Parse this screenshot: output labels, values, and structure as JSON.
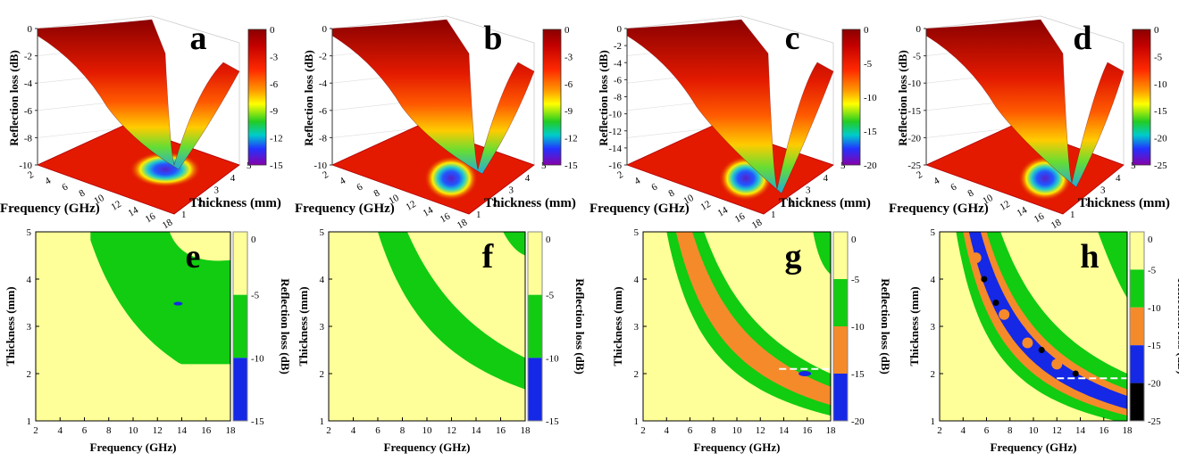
{
  "chart_data": [
    {
      "panel": "a",
      "type": "surface3d",
      "xlabel": "Frequency (GHz)",
      "ylabel": "Thickness (mm)",
      "zlabel": "Reflection loss (dB)",
      "xticks": [
        "2",
        "4",
        "6",
        "8",
        "10",
        "12",
        "14",
        "16",
        "18"
      ],
      "yticks": [
        "1",
        "2",
        "3",
        "4",
        "5"
      ],
      "zticks": [
        "0",
        "-2",
        "-4",
        "-6",
        "-8",
        "-10"
      ],
      "colorbar": [
        "0",
        "-3",
        "-6",
        "-9",
        "-12",
        "-15"
      ],
      "zlim": [
        -10,
        0
      ]
    },
    {
      "panel": "b",
      "type": "surface3d",
      "xlabel": "Frequency (GHz)",
      "ylabel": "Thickness (mm)",
      "zlabel": "Reflection loss (dB)",
      "xticks": [
        "2",
        "4",
        "6",
        "8",
        "10",
        "12",
        "14",
        "16",
        "18"
      ],
      "yticks": [
        "1",
        "2",
        "3",
        "4",
        "5"
      ],
      "zticks": [
        "0",
        "-2",
        "-4",
        "-6",
        "-8",
        "-10"
      ],
      "colorbar": [
        "0",
        "-3",
        "-6",
        "-9",
        "-12",
        "-15"
      ],
      "zlim": [
        -10,
        0
      ]
    },
    {
      "panel": "c",
      "type": "surface3d",
      "xlabel": "Frequency (GHz)",
      "ylabel": "Thickness (mm)",
      "zlabel": "Reflection loss (dB)",
      "xticks": [
        "2",
        "4",
        "6",
        "8",
        "10",
        "12",
        "14",
        "16",
        "18"
      ],
      "yticks": [
        "1",
        "2",
        "3",
        "4",
        "5"
      ],
      "zticks": [
        "0",
        "-2",
        "-4",
        "-6",
        "-8",
        "-10",
        "-12",
        "-14",
        "-16"
      ],
      "colorbar": [
        "0",
        "-5",
        "-10",
        "-15",
        "-20"
      ],
      "zlim": [
        -16,
        0
      ]
    },
    {
      "panel": "d",
      "type": "surface3d",
      "xlabel": "Frequency (GHz)",
      "ylabel": "Thickness (mm)",
      "zlabel": "Reflection loss (dB)",
      "xticks": [
        "2",
        "4",
        "6",
        "8",
        "10",
        "12",
        "14",
        "16",
        "18"
      ],
      "yticks": [
        "1",
        "2",
        "3",
        "4",
        "5"
      ],
      "zticks": [
        "0",
        "-5",
        "-10",
        "-15",
        "-20",
        "-25"
      ],
      "colorbar": [
        "0",
        "-5",
        "-10",
        "-15",
        "-20",
        "-25"
      ],
      "zlim": [
        -25,
        0
      ]
    },
    {
      "panel": "e",
      "type": "contour",
      "xlabel": "Frequency (GHz)",
      "ylabel": "Thickness (mm)",
      "colorbar_label": "Reflection loss (dB)",
      "xticks": [
        "2",
        "4",
        "6",
        "8",
        "10",
        "12",
        "14",
        "16",
        "18"
      ],
      "yticks": [
        "1",
        "2",
        "3",
        "4",
        "5"
      ],
      "colorbar": [
        "0",
        "-5",
        "-10",
        "-15"
      ],
      "xlim": [
        2,
        18
      ],
      "ylim": [
        1,
        5
      ]
    },
    {
      "panel": "f",
      "type": "contour",
      "xlabel": "Frequency (GHz)",
      "ylabel": "Thickness (mm)",
      "colorbar_label": "Reflection loss (dB)",
      "xticks": [
        "2",
        "4",
        "6",
        "8",
        "10",
        "12",
        "14",
        "16",
        "18"
      ],
      "yticks": [
        "1",
        "2",
        "3",
        "4",
        "5"
      ],
      "colorbar": [
        "0",
        "-5",
        "-10",
        "-15"
      ],
      "xlim": [
        2,
        18
      ],
      "ylim": [
        1,
        5
      ]
    },
    {
      "panel": "g",
      "type": "contour",
      "xlabel": "Frequency (GHz)",
      "ylabel": "Thickness (mm)",
      "colorbar_label": "Reflection loss (dB)",
      "xticks": [
        "2",
        "4",
        "6",
        "8",
        "10",
        "12",
        "14",
        "16",
        "18"
      ],
      "yticks": [
        "1",
        "2",
        "3",
        "4",
        "5"
      ],
      "colorbar": [
        "0",
        "-5",
        "-10",
        "-15",
        "-20"
      ],
      "xlim": [
        2,
        18
      ],
      "ylim": [
        1,
        5
      ],
      "reference_line": {
        "thickness": 2.1,
        "x_from": 13.6,
        "x_to": 18
      }
    },
    {
      "panel": "h",
      "type": "contour",
      "xlabel": "Frequency (GHz)",
      "ylabel": "Thickness (mm)",
      "colorbar_label": "Reflection loss (dB)",
      "xticks": [
        "2",
        "4",
        "6",
        "8",
        "10",
        "12",
        "14",
        "16",
        "18"
      ],
      "yticks": [
        "1",
        "2",
        "3",
        "4",
        "5"
      ],
      "colorbar": [
        "0",
        "-5",
        "-10",
        "-15",
        "-20",
        "-25"
      ],
      "xlim": [
        2,
        18
      ],
      "ylim": [
        1,
        5
      ],
      "reference_line": {
        "thickness": 1.9,
        "x_from": 12,
        "x_to": 18
      },
      "minima": [
        {
          "f": 5.8,
          "t": 4.0
        },
        {
          "f": 6.8,
          "t": 3.5
        },
        {
          "f": 10.7,
          "t": 2.5
        },
        {
          "f": 13.6,
          "t": 2.0
        }
      ]
    }
  ],
  "colors": {
    "yellow": "#ffff99",
    "green": "#11cc11",
    "orange": "#f58a2a",
    "blue": "#1428e6",
    "black": "#000000"
  }
}
